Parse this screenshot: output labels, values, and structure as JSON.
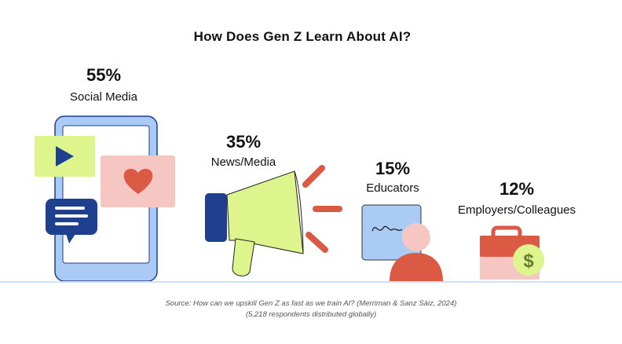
{
  "chart_data": {
    "type": "bar",
    "title": "How Does Gen Z Learn About AI?",
    "categories": [
      "Social Media",
      "News/Media",
      "Educators",
      "Employers/Colleagues"
    ],
    "values": [
      55,
      35,
      15,
      12
    ],
    "value_labels": [
      "55%",
      "35%",
      "15%",
      "12%"
    ],
    "unit": "%"
  },
  "source": {
    "line1": "Source: How can we upskill Gen Z as fast as we train AI? (Merriman & Sanz Sáiz, 2024)",
    "line2": "(5,218 respondents distributed globally)"
  },
  "colors": {
    "blue_light": "#a9cbf5",
    "blue_dark": "#1f3f8f",
    "lime": "#ddf58c",
    "pink": "#f6c7c2",
    "coral": "#db5a43",
    "baseline": "#cfe2f8",
    "dollar": "#6a7a34"
  },
  "icons": [
    "phone-icon",
    "play-icon",
    "heart-icon",
    "chat-icon",
    "megaphone-icon",
    "board-icon",
    "person-icon",
    "briefcase-icon",
    "dollar-icon"
  ]
}
